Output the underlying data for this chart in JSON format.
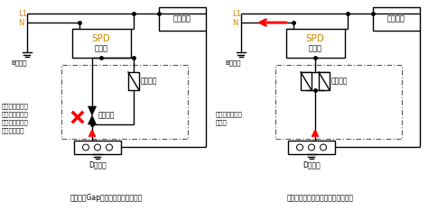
{
  "bg_color": "#ffffff",
  "line_color": "#000000",
  "orange_color": "#cc8800",
  "red_color": "#ff0000",
  "left_caption": "対地間にGap素子が接続される構成",
  "right_caption": "対地間にバリスタが接続される構成",
  "left_note1": "ギャップが動作",
  "left_note2": "するほどの高電",
  "left_note3": "圧にならないと",
  "left_note4": "侵入できない",
  "right_note1": "接地線から侵入",
  "right_note2": "し易い",
  "label_L1": "L1",
  "label_N": "N",
  "label_SPD": "SPD",
  "label_bunri": "分離器",
  "label_B": "B種接地",
  "label_D": "D種接地",
  "label_denki": "電気設備",
  "label_varistor": "バリスタ",
  "label_gap": "ギャップ"
}
